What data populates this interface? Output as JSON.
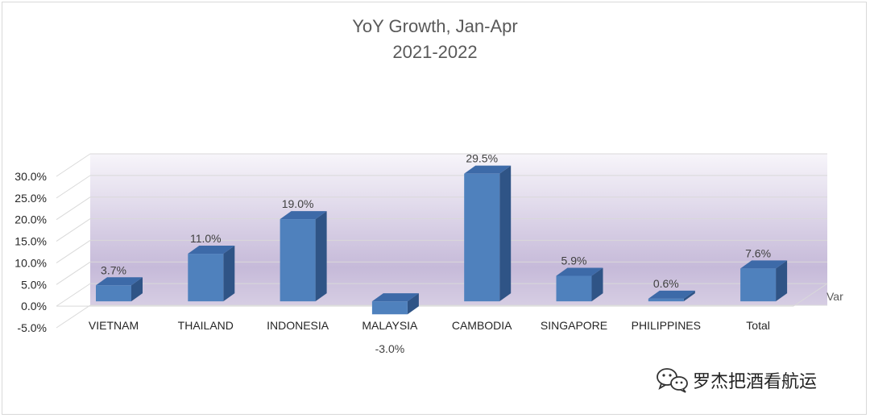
{
  "chart_data": {
    "type": "bar",
    "title": "YoY Growth, Jan-Apr",
    "subtitle": "2021-2022",
    "categories": [
      "VIETNAM",
      "THAILAND",
      "INDONESIA",
      "MALAYSIA",
      "CAMBODIA",
      "SINGAPORE",
      "PHILIPPINES",
      "Total"
    ],
    "series": [
      {
        "name": "Var",
        "values": [
          3.7,
          11.0,
          19.0,
          -3.0,
          29.5,
          5.9,
          0.6,
          7.6
        ]
      }
    ],
    "data_labels": [
      "3.7%",
      "11.0%",
      "19.0%",
      "-3.0%",
      "29.5%",
      "5.9%",
      "0.6%",
      "7.6%"
    ],
    "y_ticks": [
      "30.0%",
      "25.0%",
      "20.0%",
      "15.0%",
      "10.0%",
      "5.0%",
      "0.0%",
      "-5.0%"
    ],
    "ylim": [
      -5,
      30
    ],
    "grid": true,
    "legend_position": "right",
    "bar_color": "#4f81bd",
    "bar_side_color": "#2f5486",
    "bar_top_color": "#3d6aa8"
  },
  "watermark": {
    "text": "罗杰把酒看航运",
    "icon": "wechat-icon"
  }
}
